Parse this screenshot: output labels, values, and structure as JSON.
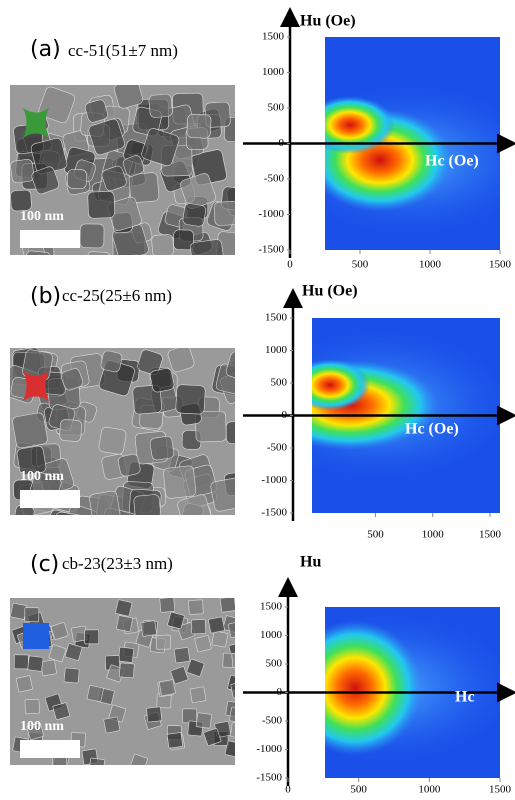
{
  "panels": [
    {
      "label": "(a)",
      "sample": "cc-51(51±7 nm)",
      "scale_bar": "100 nm",
      "y_axis_label": "Hu (Oe)",
      "x_axis_label": "Hc (Oe)",
      "xlim": [
        0,
        1500
      ],
      "ylim": [
        -1500,
        1500
      ],
      "xticks": [
        0,
        500,
        1000,
        1500
      ],
      "yticks": [
        -1500,
        -1000,
        -500,
        0,
        500,
        1000,
        1500
      ]
    },
    {
      "label": "(b)",
      "sample": "cc-25(25±6 nm)",
      "scale_bar": "100 nm",
      "y_axis_label": "Hu (Oe)",
      "x_axis_label": "Hc (Oe)",
      "xlim": [
        -220,
        1500
      ],
      "ylim": [
        -1500,
        1500
      ],
      "xticks": [
        500,
        1000,
        1500
      ],
      "yticks": [
        -1500,
        -1000,
        -500,
        0,
        500,
        1000,
        1500
      ]
    },
    {
      "label": "(c)",
      "sample": "cb-23(23±3 nm)",
      "scale_bar": "100 nm",
      "y_axis_label": "Hu",
      "x_axis_label": "Hc",
      "xlim": [
        0,
        1500
      ],
      "ylim": [
        -1500,
        1500
      ],
      "xticks": [
        0,
        500,
        1000,
        1500
      ],
      "yticks": [
        -1500,
        -1000,
        -500,
        0,
        500,
        1000,
        1500
      ]
    }
  ]
}
